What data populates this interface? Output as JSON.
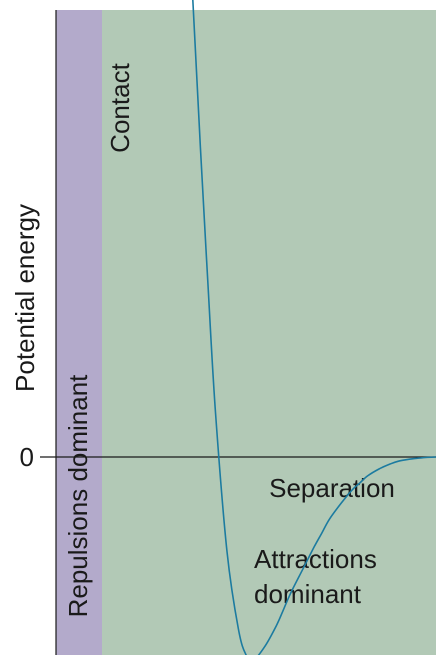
{
  "chart_data": {
    "type": "line",
    "title": "",
    "xlabel": "Separation",
    "ylabel": "Potential energy",
    "y_tick_labels": [
      "0"
    ],
    "x_ticks_shown": false,
    "grid": false,
    "legend": "none",
    "regions": [
      {
        "name": "repulsions",
        "label": "Repulsions dominant",
        "color": "#b3aacb"
      },
      {
        "name": "attractions",
        "label": "Attractions dominant",
        "color": "#b2c9b6"
      }
    ],
    "annotations": [
      {
        "name": "contact",
        "text": "Contact"
      }
    ],
    "series": [
      {
        "color": "#1c7ba0",
        "x": [
          0.28,
          0.3,
          0.32,
          0.35,
          0.38,
          0.4,
          0.42,
          0.45,
          0.48,
          0.5,
          0.52,
          0.55,
          0.58,
          0.6,
          0.62,
          0.65,
          0.68,
          0.7,
          0.72,
          0.75,
          0.78,
          0.8,
          0.82,
          0.85,
          0.88,
          0.9,
          0.93,
          0.96,
          1.0
        ],
        "y": [
          7.1,
          5.8,
          4.6,
          3.1,
          1.8,
          1.0,
          0.25,
          -0.55,
          -1.0,
          -1.15,
          -1.18,
          -1.1,
          -0.98,
          -0.88,
          -0.78,
          -0.65,
          -0.52,
          -0.44,
          -0.36,
          -0.27,
          -0.19,
          -0.15,
          -0.11,
          -0.07,
          -0.04,
          -0.025,
          -0.013,
          -0.005,
          0.0
        ]
      }
    ],
    "colors": {
      "curve": "#1c7ba0",
      "axis": "#1a1a1a",
      "repulsion_band": "#b3aacb",
      "attraction_area": "#b2c9b6"
    }
  }
}
